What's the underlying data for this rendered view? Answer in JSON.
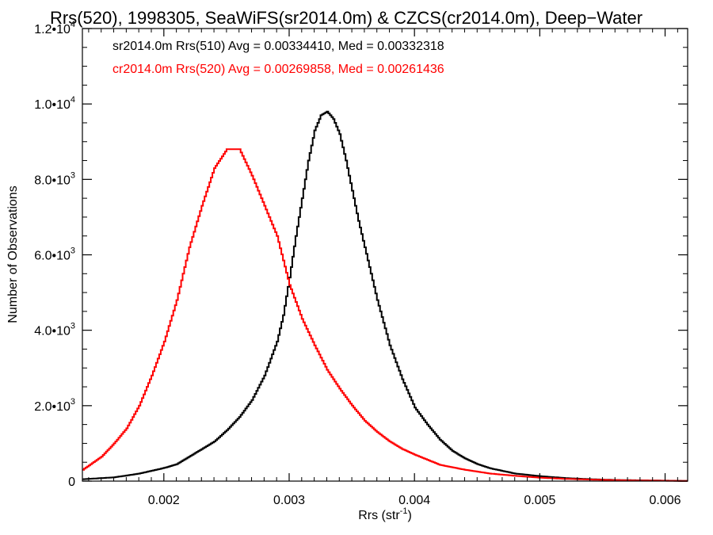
{
  "chart_data": {
    "type": "line",
    "title": "Rrs(520), 1998305, SeaWiFS(sr2014.0m) & CZCS(cr2014.0m), Deep−Water",
    "xlabel": "Rrs (str⁻¹)",
    "ylabel": "Number of Observations",
    "xlim": [
      0.00135,
      0.00618
    ],
    "ylim": [
      0,
      12000
    ],
    "x_ticks": [
      0.002,
      0.003,
      0.004,
      0.005,
      0.006
    ],
    "x_tick_labels": [
      "0.002",
      "0.003",
      "0.004",
      "0.005",
      "0.006"
    ],
    "y_ticks": [
      0,
      2000,
      4000,
      6000,
      8000,
      10000,
      12000
    ],
    "y_tick_labels": [
      {
        "mantissa": "0",
        "exponent": ""
      },
      {
        "mantissa": "2.0•10",
        "exponent": "3"
      },
      {
        "mantissa": "4.0•10",
        "exponent": "3"
      },
      {
        "mantissa": "6.0•10",
        "exponent": "3"
      },
      {
        "mantissa": "8.0•10",
        "exponent": "3"
      },
      {
        "mantissa": "1.0•10",
        "exponent": "4"
      },
      {
        "mantissa": "1.2•10",
        "exponent": "4"
      }
    ],
    "grid": false,
    "legend": "top-left",
    "series": [
      {
        "name": "sr2014.0m Rrs(510) Avg = 0.00334410, Med = 0.00332318",
        "color": "#000000",
        "x": [
          0.00135,
          0.0016,
          0.0018,
          0.002,
          0.0021,
          0.0022,
          0.0023,
          0.0024,
          0.0025,
          0.0026,
          0.0027,
          0.0028,
          0.0029,
          0.00295,
          0.003,
          0.00305,
          0.0031,
          0.00315,
          0.0032,
          0.00325,
          0.0033,
          0.00335,
          0.0034,
          0.00345,
          0.0035,
          0.00355,
          0.0036,
          0.00365,
          0.0037,
          0.00375,
          0.0038,
          0.0039,
          0.004,
          0.0041,
          0.0042,
          0.0043,
          0.0044,
          0.0045,
          0.0046,
          0.0048,
          0.005,
          0.0052,
          0.0054,
          0.0056,
          0.0058,
          0.00618
        ],
        "y": [
          50,
          100,
          200,
          350,
          450,
          650,
          850,
          1050,
          1350,
          1700,
          2150,
          2800,
          3700,
          4400,
          5400,
          6500,
          7500,
          8500,
          9300,
          9700,
          9800,
          9600,
          9200,
          8500,
          7700,
          6900,
          6200,
          5500,
          4800,
          4200,
          3600,
          2700,
          1950,
          1500,
          1100,
          800,
          600,
          450,
          340,
          200,
          130,
          80,
          50,
          30,
          20,
          5
        ]
      },
      {
        "name": "cr2014.0m Rrs(520) Avg = 0.00269858, Med = 0.00261436",
        "color": "#ff0000",
        "x": [
          0.00135,
          0.0015,
          0.0016,
          0.0017,
          0.0018,
          0.0019,
          0.002,
          0.0021,
          0.0022,
          0.0023,
          0.0024,
          0.0025,
          0.0026,
          0.0027,
          0.0028,
          0.0029,
          0.003,
          0.0031,
          0.0032,
          0.0033,
          0.0034,
          0.0035,
          0.0036,
          0.0037,
          0.0038,
          0.0039,
          0.004,
          0.0042,
          0.0044,
          0.0046,
          0.0048,
          0.005,
          0.0052,
          0.0054,
          0.0056,
          0.0058,
          0.00618
        ],
        "y": [
          300,
          650,
          1000,
          1400,
          2000,
          2800,
          3700,
          4800,
          6200,
          7300,
          8300,
          8800,
          8800,
          8100,
          7300,
          6500,
          5200,
          4300,
          3600,
          2950,
          2450,
          2000,
          1600,
          1300,
          1050,
          850,
          700,
          430,
          300,
          200,
          140,
          90,
          60,
          40,
          25,
          15,
          5
        ]
      }
    ]
  }
}
